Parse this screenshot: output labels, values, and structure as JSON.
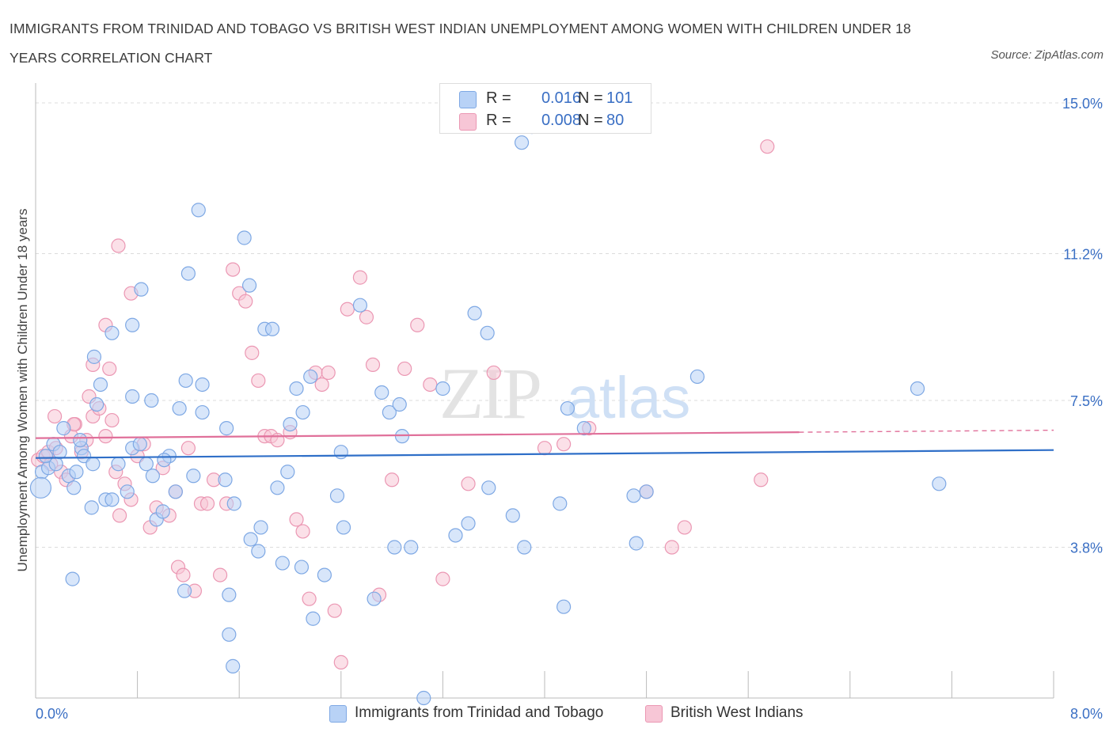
{
  "title": "IMMIGRANTS FROM TRINIDAD AND TOBAGO VS BRITISH WEST INDIAN UNEMPLOYMENT AMONG WOMEN WITH CHILDREN UNDER 18 YEARS CORRELATION CHART",
  "source": "Source: ZipAtlas.com",
  "watermark": {
    "zip": "ZIP",
    "atlas": "atlas"
  },
  "colors": {
    "blue_fill": "#b8d2f6",
    "blue_stroke": "#7ea8e4",
    "blue_line": "#2f6fc8",
    "pink_fill": "#f7c6d6",
    "pink_stroke": "#eb97b3",
    "pink_line": "#e0709a",
    "axis_label": "#3a6fc4",
    "grid": "#dcdcdc"
  },
  "stats": [
    {
      "r_label": "R =",
      "r_value": "0.016",
      "n_label": "N =",
      "n_value": "101",
      "color": "blue"
    },
    {
      "r_label": "R =",
      "r_value": "0.008",
      "n_label": "N =",
      "n_value": "80",
      "color": "pink"
    }
  ],
  "legend": [
    {
      "label": "Immigrants from Trinidad and Tobago",
      "color": "blue"
    },
    {
      "label": "British West Indians",
      "color": "pink"
    }
  ],
  "chart_data": {
    "type": "scatter",
    "title": "IMMIGRANTS FROM TRINIDAD AND TOBAGO VS BRITISH WEST INDIAN UNEMPLOYMENT AMONG WOMEN WITH CHILDREN UNDER 18 YEARS CORRELATION CHART",
    "xlabel": "",
    "ylabel": "Unemployment Among Women with Children Under 18 years",
    "xlim": [
      0,
      8
    ],
    "ylim": [
      0,
      15.3
    ],
    "x_tick_labels": [
      "0.0%",
      "8.0%"
    ],
    "y_ticks": [
      3.8,
      7.5,
      11.2,
      15.0
    ],
    "y_tick_labels": [
      "3.8%",
      "7.5%",
      "11.2%",
      "15.0%"
    ],
    "grid": true,
    "legend_position": "bottom",
    "series": [
      {
        "name": "Immigrants from Trinidad and Tobago",
        "color": "blue",
        "trend": {
          "x": [
            0,
            8
          ],
          "y": [
            6.05,
            6.25
          ]
        },
        "points": [
          [
            0.05,
            5.7
          ],
          [
            0.1,
            5.8
          ],
          [
            0.08,
            6.1
          ],
          [
            0.14,
            6.4
          ],
          [
            0.16,
            5.9
          ],
          [
            0.19,
            6.2
          ],
          [
            0.22,
            6.8
          ],
          [
            0.26,
            5.6
          ],
          [
            0.3,
            5.3
          ],
          [
            0.32,
            5.7
          ],
          [
            0.36,
            6.3
          ],
          [
            0.38,
            6.1
          ],
          [
            0.45,
            5.9
          ],
          [
            0.48,
            7.4
          ],
          [
            0.55,
            5.0
          ],
          [
            0.6,
            5.0
          ],
          [
            0.65,
            5.9
          ],
          [
            0.72,
            5.2
          ],
          [
            0.76,
            6.3
          ],
          [
            0.82,
            6.4
          ],
          [
            0.87,
            5.9
          ],
          [
            0.92,
            5.6
          ],
          [
            0.95,
            4.5
          ],
          [
            1.0,
            4.7
          ],
          [
            1.05,
            6.1
          ],
          [
            1.1,
            5.2
          ],
          [
            1.13,
            7.3
          ],
          [
            1.18,
            8.0
          ],
          [
            1.24,
            5.6
          ],
          [
            1.31,
            7.2
          ],
          [
            0.91,
            7.5
          ],
          [
            0.76,
            9.4
          ],
          [
            0.51,
            7.9
          ],
          [
            1.01,
            6.0
          ],
          [
            1.2,
            10.7
          ],
          [
            1.28,
            12.3
          ],
          [
            1.31,
            7.9
          ],
          [
            1.49,
            5.5
          ],
          [
            1.5,
            6.8
          ],
          [
            1.56,
            4.9
          ],
          [
            1.64,
            11.6
          ],
          [
            1.68,
            10.4
          ],
          [
            1.69,
            4.0
          ],
          [
            1.75,
            3.7
          ],
          [
            1.77,
            4.3
          ],
          [
            1.8,
            9.3
          ],
          [
            1.86,
            9.3
          ],
          [
            1.9,
            5.3
          ],
          [
            1.94,
            3.4
          ],
          [
            1.98,
            5.7
          ],
          [
            2.0,
            6.9
          ],
          [
            2.05,
            7.8
          ],
          [
            2.09,
            3.3
          ],
          [
            2.1,
            7.2
          ],
          [
            2.16,
            8.1
          ],
          [
            2.18,
            2.0
          ],
          [
            2.27,
            3.1
          ],
          [
            2.37,
            5.1
          ],
          [
            2.42,
            4.3
          ],
          [
            2.55,
            9.9
          ],
          [
            2.66,
            2.5
          ],
          [
            2.72,
            7.7
          ],
          [
            2.78,
            7.2
          ],
          [
            2.82,
            3.8
          ],
          [
            2.86,
            7.4
          ],
          [
            2.88,
            6.6
          ],
          [
            2.95,
            3.8
          ],
          [
            3.2,
            7.8
          ],
          [
            3.3,
            4.1
          ],
          [
            3.4,
            4.4
          ],
          [
            3.45,
            9.7
          ],
          [
            3.55,
            9.2
          ],
          [
            3.56,
            5.3
          ],
          [
            3.75,
            4.6
          ],
          [
            3.84,
            3.8
          ],
          [
            3.82,
            14.0
          ],
          [
            3.9,
            14.4
          ],
          [
            4.12,
            4.9
          ],
          [
            4.15,
            2.3
          ],
          [
            4.18,
            7.3
          ],
          [
            4.31,
            6.8
          ],
          [
            4.7,
            5.1
          ],
          [
            4.72,
            3.9
          ],
          [
            4.8,
            5.2
          ],
          [
            5.2,
            8.1
          ],
          [
            6.93,
            7.8
          ],
          [
            7.1,
            5.4
          ],
          [
            3.05,
            0.0
          ],
          [
            1.52,
            1.6
          ],
          [
            1.52,
            2.6
          ],
          [
            1.17,
            2.7
          ],
          [
            0.46,
            8.6
          ],
          [
            0.6,
            9.2
          ],
          [
            0.76,
            7.6
          ],
          [
            0.83,
            10.3
          ],
          [
            0.44,
            4.8
          ],
          [
            0.29,
            3.0
          ],
          [
            0.35,
            6.5
          ],
          [
            1.55,
            0.8
          ],
          [
            2.4,
            6.2
          ],
          [
            0.04,
            5.3
          ]
        ]
      },
      {
        "name": "British West Indians",
        "color": "pink",
        "trend": {
          "x": [
            0,
            6
          ],
          "y": [
            6.55,
            6.7
          ]
        },
        "trend_dashed": {
          "x": [
            6,
            8
          ],
          "y": [
            6.7,
            6.75
          ]
        },
        "points": [
          [
            0.02,
            6.0
          ],
          [
            0.06,
            6.1
          ],
          [
            0.1,
            6.2
          ],
          [
            0.12,
            5.9
          ],
          [
            0.16,
            6.3
          ],
          [
            0.2,
            5.7
          ],
          [
            0.24,
            5.5
          ],
          [
            0.28,
            6.6
          ],
          [
            0.31,
            6.9
          ],
          [
            0.36,
            6.2
          ],
          [
            0.4,
            6.5
          ],
          [
            0.45,
            7.1
          ],
          [
            0.5,
            7.3
          ],
          [
            0.55,
            6.6
          ],
          [
            0.6,
            7.0
          ],
          [
            0.63,
            5.7
          ],
          [
            0.66,
            4.6
          ],
          [
            0.7,
            5.4
          ],
          [
            0.75,
            5.0
          ],
          [
            0.8,
            6.1
          ],
          [
            0.85,
            6.4
          ],
          [
            0.9,
            4.3
          ],
          [
            0.95,
            4.8
          ],
          [
            1.0,
            5.8
          ],
          [
            1.05,
            4.6
          ],
          [
            1.1,
            5.2
          ],
          [
            1.12,
            3.3
          ],
          [
            1.16,
            3.1
          ],
          [
            1.2,
            6.3
          ],
          [
            1.25,
            2.7
          ],
          [
            1.3,
            4.9
          ],
          [
            1.35,
            4.9
          ],
          [
            1.4,
            5.5
          ],
          [
            1.45,
            3.1
          ],
          [
            1.5,
            4.9
          ],
          [
            1.55,
            10.8
          ],
          [
            1.6,
            10.2
          ],
          [
            1.65,
            10.0
          ],
          [
            1.7,
            8.7
          ],
          [
            1.75,
            8.0
          ],
          [
            1.8,
            6.6
          ],
          [
            1.85,
            6.6
          ],
          [
            1.9,
            6.5
          ],
          [
            2.0,
            6.7
          ],
          [
            2.05,
            4.5
          ],
          [
            2.1,
            4.2
          ],
          [
            2.15,
            2.5
          ],
          [
            2.2,
            8.2
          ],
          [
            2.25,
            7.9
          ],
          [
            2.3,
            8.2
          ],
          [
            2.35,
            2.2
          ],
          [
            2.4,
            0.9
          ],
          [
            2.45,
            9.8
          ],
          [
            2.55,
            10.6
          ],
          [
            2.6,
            9.6
          ],
          [
            2.65,
            8.4
          ],
          [
            2.7,
            2.6
          ],
          [
            2.8,
            5.5
          ],
          [
            2.9,
            8.3
          ],
          [
            3.0,
            9.4
          ],
          [
            3.1,
            7.9
          ],
          [
            3.2,
            3.0
          ],
          [
            3.4,
            5.4
          ],
          [
            3.6,
            8.2
          ],
          [
            4.0,
            6.3
          ],
          [
            4.15,
            6.4
          ],
          [
            4.35,
            6.8
          ],
          [
            4.8,
            5.2
          ],
          [
            5.0,
            3.8
          ],
          [
            5.1,
            4.3
          ],
          [
            5.7,
            5.5
          ],
          [
            5.75,
            13.9
          ],
          [
            0.55,
            9.4
          ],
          [
            0.65,
            11.4
          ],
          [
            0.75,
            10.2
          ],
          [
            0.45,
            8.4
          ],
          [
            0.3,
            6.9
          ],
          [
            0.42,
            7.6
          ],
          [
            0.58,
            8.3
          ],
          [
            0.15,
            7.1
          ]
        ]
      }
    ]
  }
}
